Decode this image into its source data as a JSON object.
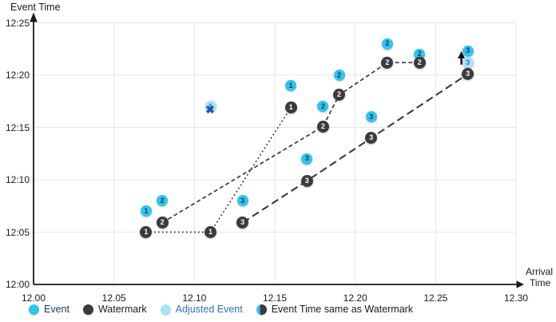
{
  "chart_data": {
    "type": "scatter",
    "title": "",
    "grid": true,
    "x_axis": {
      "label": "Arrival Time",
      "label_lines": [
        "Arrival",
        "Time"
      ],
      "min": 12.0,
      "max": 12.3,
      "ticks": [
        "12.00",
        "12.05",
        "12.10",
        "12.15",
        "12.20",
        "12.25",
        "12.30"
      ],
      "tick_values": [
        12.0,
        12.05,
        12.1,
        12.15,
        12.2,
        12.25,
        12.3
      ]
    },
    "y_axis": {
      "label": "Event Time",
      "min": "12:00",
      "max": "12:25",
      "ticks": [
        "12:00",
        "12:05",
        "12:10",
        "12:15",
        "12:20",
        "12:25"
      ],
      "tick_minutes": [
        0,
        5,
        10,
        15,
        20,
        25
      ]
    },
    "series": [
      {
        "name": "Event",
        "color": "#30c4ec",
        "label_color": "#14365c",
        "diameter": 14,
        "points": [
          {
            "label": "1",
            "arrival": 12.07,
            "event_min": 7
          },
          {
            "label": "2",
            "arrival": 12.08,
            "event_min": 8
          },
          {
            "label": "3",
            "arrival": 12.13,
            "event_min": 8
          },
          {
            "label": "1",
            "arrival": 12.16,
            "event_min": 19
          },
          {
            "label": "3",
            "arrival": 12.17,
            "event_min": 12
          },
          {
            "label": "2",
            "arrival": 12.18,
            "event_min": 17
          },
          {
            "label": "2",
            "arrival": 12.19,
            "event_min": 20
          },
          {
            "label": "3",
            "arrival": 12.21,
            "event_min": 16
          },
          {
            "label": "2",
            "arrival": 12.22,
            "event_min": 23
          },
          {
            "label": "2",
            "arrival": 12.24,
            "event_min": 22
          },
          {
            "label": "3",
            "arrival": 12.27,
            "event_min": 22.3
          }
        ]
      },
      {
        "name": "Watermark",
        "color": "#3a3a41",
        "label_color": "#ffffff",
        "diameter": 15,
        "points": [
          {
            "label": "1",
            "arrival": 12.07,
            "event_min": 5
          },
          {
            "label": "2",
            "arrival": 12.08,
            "event_min": 5.9
          },
          {
            "label": "1",
            "arrival": 12.11,
            "event_min": 5
          },
          {
            "label": "3",
            "arrival": 12.13,
            "event_min": 5.9
          },
          {
            "label": "1",
            "arrival": 12.16,
            "event_min": 16.9
          },
          {
            "label": "3",
            "arrival": 12.17,
            "event_min": 9.9
          },
          {
            "label": "2",
            "arrival": 12.18,
            "event_min": 15.1
          },
          {
            "label": "2",
            "arrival": 12.19,
            "event_min": 18.1
          },
          {
            "label": "3",
            "arrival": 12.21,
            "event_min": 14
          },
          {
            "label": "2",
            "arrival": 12.22,
            "event_min": 21.2
          },
          {
            "label": "2",
            "arrival": 12.24,
            "event_min": 21.2
          },
          {
            "label": "3",
            "arrival": 12.27,
            "event_min": 20.1
          }
        ],
        "lines": [
          {
            "id": "watermark-1",
            "dash": "dotted",
            "points": [
              [
                12.07,
                5
              ],
              [
                12.11,
                5
              ],
              [
                12.16,
                16.9
              ]
            ]
          },
          {
            "id": "watermark-2",
            "dash": "dashed",
            "points": [
              [
                12.08,
                5.9
              ],
              [
                12.18,
                15.1
              ],
              [
                12.19,
                18.1
              ],
              [
                12.22,
                21.2
              ],
              [
                12.24,
                21.2
              ]
            ]
          },
          {
            "id": "watermark-3",
            "dash": "longdash",
            "points": [
              [
                12.13,
                5.9
              ],
              [
                12.17,
                9.9
              ],
              [
                12.21,
                14
              ],
              [
                12.27,
                20.1
              ]
            ]
          }
        ]
      },
      {
        "name": "Adjusted Event",
        "color": "#a9e2f8",
        "label_color": "#2e6fc0",
        "diameter": 14,
        "points": [
          {
            "label": "1",
            "arrival": 12.11,
            "event_min": 17,
            "crossed": true
          },
          {
            "label": "3",
            "arrival": 12.27,
            "event_min": 21.2
          }
        ]
      }
    ],
    "annotations": [
      {
        "type": "up-arrow",
        "arrival": 12.266,
        "from_min": 21.0,
        "to_min": 22.2
      }
    ]
  },
  "legend": {
    "items": [
      {
        "label": "Event",
        "swatch": "event",
        "label_color": "#17365d"
      },
      {
        "label": "Watermark",
        "swatch": "watermark",
        "label_color": "#1a1a1a"
      },
      {
        "label": "Adjusted Event",
        "swatch": "adjusted",
        "label_color": "#2e75b6"
      },
      {
        "label": "Event Time same as Watermark",
        "swatch": "event-watermark",
        "label_color": "#1a1a1a"
      }
    ]
  },
  "colors": {
    "event": "#30c4ec",
    "watermark": "#3a3a41",
    "adjusted": "#a9e2f8",
    "grid": "#e7e7e7",
    "axis": "#1a1a1a",
    "cross": "#2158a8",
    "arrow": "#111111"
  }
}
